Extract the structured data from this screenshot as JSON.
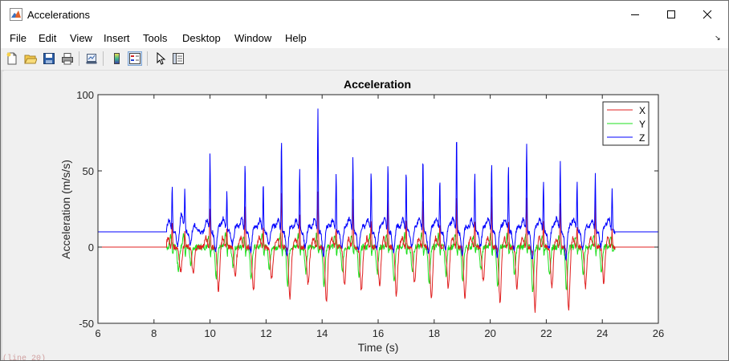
{
  "window": {
    "title": "Accelerations",
    "controls": [
      "minimize",
      "maximize",
      "close"
    ]
  },
  "menu": [
    "File",
    "Edit",
    "View",
    "Insert",
    "Tools",
    "Desktop",
    "Window",
    "Help"
  ],
  "toolbar": {
    "icons": [
      "new-figure-icon",
      "open-file-icon",
      "save-icon",
      "print-icon",
      "link-plot-icon",
      "insert-colorbar-icon",
      "insert-legend-icon",
      "edit-plot-icon",
      "property-inspector-icon"
    ]
  },
  "bottom_scrap": "                  (line 20)",
  "chart_data": {
    "type": "line",
    "title": "Acceleration",
    "xlabel": "Time (s)",
    "ylabel": "Acceleration (m/s/s)",
    "xlim": [
      6,
      26
    ],
    "ylim": [
      -50,
      100
    ],
    "xticks": [
      6,
      8,
      10,
      12,
      14,
      16,
      18,
      20,
      22,
      24,
      26
    ],
    "yticks": [
      -50,
      0,
      50,
      100
    ],
    "grid": false,
    "legend": "top-right",
    "series": [
      {
        "name": "X",
        "color": "#e02020",
        "baseline": 0
      },
      {
        "name": "Y",
        "color": "#1ee01e",
        "baseline": 0
      },
      {
        "name": "Z",
        "color": "#0000ff",
        "baseline": 10
      }
    ],
    "step_times": [
      8.65,
      9.1,
      10.0,
      10.6,
      11.25,
      11.9,
      12.55,
      13.2,
      13.85,
      14.5,
      15.1,
      15.75,
      16.35,
      17.0,
      17.6,
      18.2,
      18.8,
      19.45,
      20.05,
      20.65,
      21.3,
      21.9,
      22.5,
      23.1,
      23.75,
      24.35
    ],
    "z_peaks": [
      36,
      31,
      59,
      33,
      52,
      37,
      73,
      48,
      95,
      45,
      58,
      46,
      54,
      47,
      57,
      40,
      76,
      45,
      55,
      53,
      68,
      40,
      54,
      38,
      46,
      34
    ],
    "x_peaks": [
      17,
      10,
      30,
      12,
      31,
      14,
      42,
      22,
      39,
      15,
      34,
      18,
      35,
      19,
      35,
      17,
      37,
      19,
      37,
      21,
      36,
      18,
      34,
      16,
      32,
      12
    ],
    "x_troughs": [
      -22,
      -18,
      -28,
      -18,
      -29,
      -21,
      -34,
      -24,
      -36,
      -25,
      -29,
      -25,
      -32,
      -24,
      -34,
      -26,
      -33,
      -22,
      -36,
      -27,
      -42,
      -26,
      -41,
      -26,
      -23,
      -14
    ],
    "y_troughs": [
      -17,
      -13,
      -22,
      -14,
      -24,
      -16,
      -27,
      -18,
      -28,
      -18,
      -23,
      -18,
      -26,
      -18,
      -27,
      -20,
      -26,
      -17,
      -29,
      -21,
      -33,
      -22,
      -32,
      -20,
      -18,
      -12
    ]
  }
}
